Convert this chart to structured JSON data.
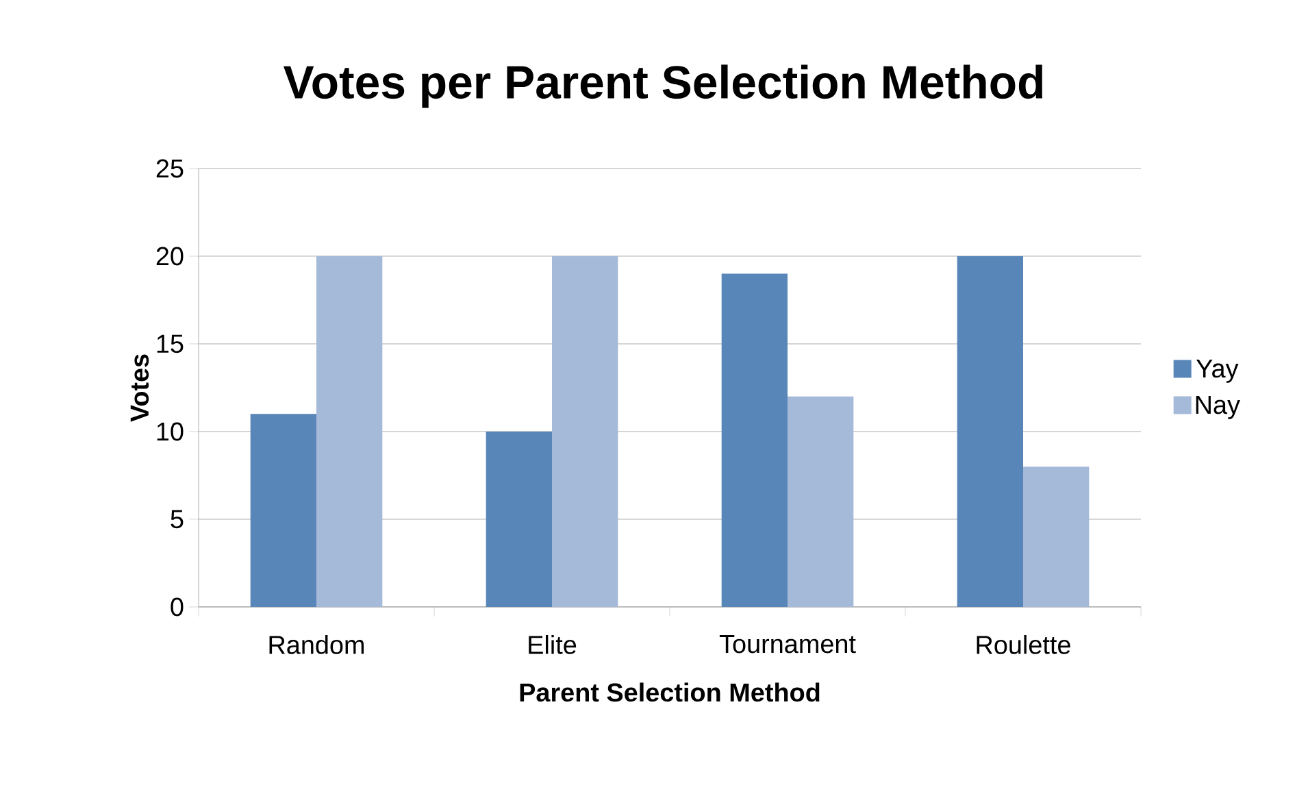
{
  "chart_data": {
    "type": "bar",
    "title": "Votes per Parent Selection Method",
    "xlabel": "Parent Selection Method",
    "ylabel": "Votes",
    "categories": [
      "Random",
      "Elite",
      "Tournament",
      "Roulette"
    ],
    "series": [
      {
        "name": "Yay",
        "color": "#5886b9",
        "values": [
          11,
          10,
          19,
          20
        ]
      },
      {
        "name": "Nay",
        "color": "#a5b9d9",
        "values": [
          20,
          20,
          12,
          8
        ]
      }
    ],
    "ylim": [
      0,
      25
    ],
    "yticks": [
      0,
      5,
      10,
      15,
      20,
      25
    ],
    "grid": "y",
    "legend": "right"
  }
}
